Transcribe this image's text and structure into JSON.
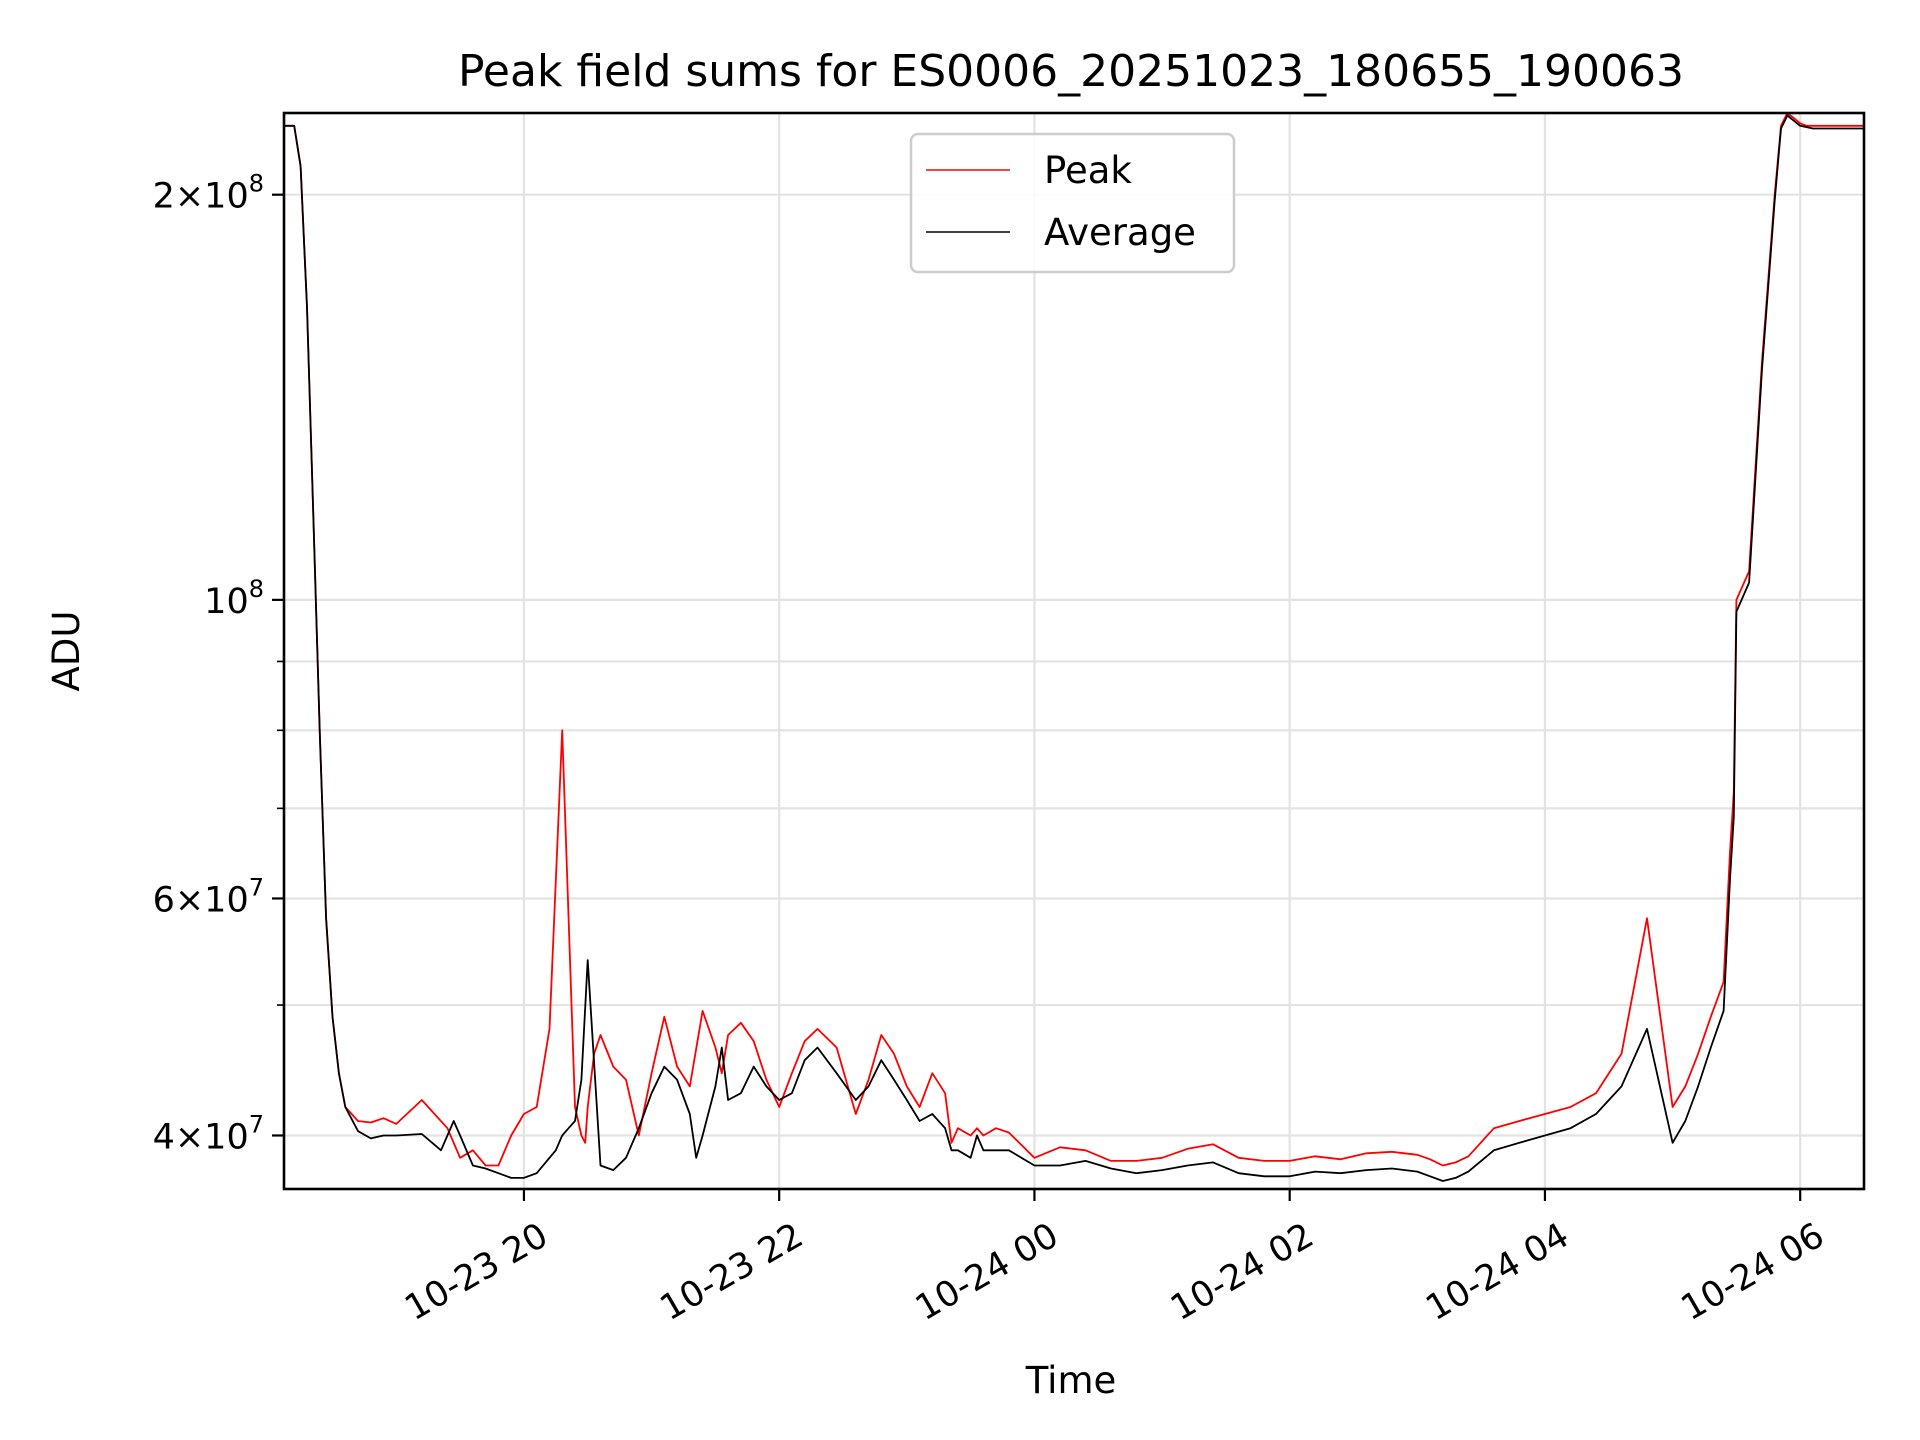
{
  "chart_data": {
    "type": "line",
    "title": "Peak field sums for ES0006_20251023_180655_190063",
    "xlabel": "Time",
    "ylabel": "ADU",
    "yscale": "log",
    "ylim": [
      36500000,
      230000000
    ],
    "xlim_hours_from_20251023_0000": [
      18.12,
      30.5
    ],
    "grid": true,
    "legend_position": "upper-center",
    "x_ticks": [
      {
        "hour": 20,
        "label": "10-23 20"
      },
      {
        "hour": 22,
        "label": "10-23 22"
      },
      {
        "hour": 24,
        "label": "10-24 00"
      },
      {
        "hour": 26,
        "label": "10-24 02"
      },
      {
        "hour": 28,
        "label": "10-24 04"
      },
      {
        "hour": 30,
        "label": "10-24 06"
      }
    ],
    "y_major_ticks": [
      {
        "value": 40000000,
        "mant": "4",
        "base": "10",
        "exp": "7"
      },
      {
        "value": 60000000,
        "mant": "6",
        "base": "10",
        "exp": "7"
      },
      {
        "value": 100000000,
        "mant": "",
        "base": "10",
        "exp": "8"
      },
      {
        "value": 200000000,
        "mant": "2",
        "base": "10",
        "exp": "8"
      }
    ],
    "y_minor_ticks": [
      50000000,
      70000000,
      80000000,
      90000000
    ],
    "series": [
      {
        "name": "Peak",
        "color": "#ff0000",
        "hours": [
          18.12,
          18.2,
          18.25,
          18.3,
          18.35,
          18.4,
          18.45,
          18.5,
          18.55,
          18.6,
          18.7,
          18.8,
          18.9,
          19.0,
          19.2,
          19.4,
          19.5,
          19.6,
          19.7,
          19.8,
          19.9,
          20.0,
          20.1,
          20.2,
          20.3,
          20.4,
          20.45,
          20.48,
          20.5,
          20.55,
          20.6,
          20.7,
          20.8,
          20.9,
          21.0,
          21.1,
          21.2,
          21.3,
          21.4,
          21.5,
          21.55,
          21.6,
          21.7,
          21.8,
          21.9,
          22.0,
          22.1,
          22.2,
          22.3,
          22.45,
          22.6,
          22.7,
          22.8,
          22.9,
          23.0,
          23.1,
          23.2,
          23.3,
          23.35,
          23.4,
          23.5,
          23.55,
          23.6,
          23.7,
          23.8,
          24.0,
          24.2,
          24.4,
          24.6,
          24.8,
          25.0,
          25.2,
          25.4,
          25.6,
          25.8,
          26.0,
          26.2,
          26.4,
          26.6,
          26.8,
          27.0,
          27.1,
          27.2,
          27.3,
          27.4,
          27.6,
          27.8,
          28.0,
          28.2,
          28.4,
          28.6,
          28.8,
          29.0,
          29.1,
          29.2,
          29.3,
          29.4,
          29.45,
          29.48,
          29.5,
          29.6,
          29.7,
          29.8,
          29.85,
          29.9,
          29.95,
          30.0,
          30.05,
          30.1,
          30.2,
          30.3,
          30.4,
          30.5
        ],
        "values": [
          225000000,
          225000000,
          210000000,
          165000000,
          115000000,
          80000000,
          58000000,
          49000000,
          44500000,
          42000000,
          41000000,
          40900000,
          41200000,
          40800000,
          42500000,
          40500000,
          38500000,
          39000000,
          38000000,
          38000000,
          40000000,
          41500000,
          42000000,
          48000000,
          80000000,
          42000000,
          40000000,
          39500000,
          42000000,
          46000000,
          47500000,
          45000000,
          44000000,
          40000000,
          44500000,
          49000000,
          45000000,
          43500000,
          49500000,
          46500000,
          44500000,
          47500000,
          48500000,
          47000000,
          44000000,
          42000000,
          44500000,
          47000000,
          48000000,
          46500000,
          41500000,
          44000000,
          47500000,
          46000000,
          43500000,
          42000000,
          44500000,
          43000000,
          39500000,
          40500000,
          40000000,
          40500000,
          40000000,
          40500000,
          40200000,
          38500000,
          39200000,
          39000000,
          38300000,
          38300000,
          38500000,
          39100000,
          39400000,
          38500000,
          38300000,
          38300000,
          38600000,
          38400000,
          38800000,
          38900000,
          38700000,
          38400000,
          38000000,
          38200000,
          38600000,
          40500000,
          41000000,
          41500000,
          42000000,
          43000000,
          46000000,
          58000000,
          42000000,
          43500000,
          46000000,
          49000000,
          52000000,
          65000000,
          72000000,
          100000000,
          105000000,
          150000000,
          200000000,
          225000000,
          230000000,
          228000000,
          226000000,
          225000000,
          225000000,
          225000000,
          225000000,
          225000000,
          225000000
        ]
      },
      {
        "name": "Average",
        "color": "#000000",
        "hours": [
          18.12,
          18.2,
          18.25,
          18.3,
          18.35,
          18.4,
          18.45,
          18.5,
          18.55,
          18.6,
          18.7,
          18.8,
          18.9,
          19.0,
          19.2,
          19.35,
          19.45,
          19.5,
          19.6,
          19.7,
          19.8,
          19.9,
          20.0,
          20.1,
          20.2,
          20.25,
          20.3,
          20.35,
          20.4,
          20.45,
          20.5,
          20.6,
          20.7,
          20.8,
          20.9,
          21.0,
          21.1,
          21.2,
          21.3,
          21.35,
          21.4,
          21.5,
          21.55,
          21.6,
          21.7,
          21.8,
          21.9,
          22.0,
          22.1,
          22.2,
          22.3,
          22.45,
          22.6,
          22.7,
          22.8,
          22.9,
          23.0,
          23.1,
          23.2,
          23.3,
          23.35,
          23.4,
          23.5,
          23.55,
          23.6,
          23.7,
          23.8,
          24.0,
          24.2,
          24.4,
          24.6,
          24.8,
          25.0,
          25.2,
          25.4,
          25.6,
          25.8,
          26.0,
          26.2,
          26.4,
          26.6,
          26.8,
          27.0,
          27.1,
          27.2,
          27.3,
          27.4,
          27.6,
          27.8,
          28.0,
          28.2,
          28.4,
          28.6,
          28.8,
          29.0,
          29.1,
          29.2,
          29.3,
          29.4,
          29.45,
          29.48,
          29.5,
          29.6,
          29.7,
          29.8,
          29.85,
          29.9,
          29.95,
          30.0,
          30.05,
          30.1,
          30.2,
          30.3,
          30.4,
          30.5
        ],
        "values": [
          225000000,
          225000000,
          210000000,
          165000000,
          115000000,
          80000000,
          58000000,
          49000000,
          44500000,
          42000000,
          40300000,
          39800000,
          40000000,
          40000000,
          40100000,
          39000000,
          41000000,
          40000000,
          38000000,
          37800000,
          37500000,
          37200000,
          37200000,
          37500000,
          38500000,
          39000000,
          40000000,
          40500000,
          41000000,
          44000000,
          54000000,
          38000000,
          37700000,
          38500000,
          40500000,
          43000000,
          45000000,
          44000000,
          41500000,
          38500000,
          40000000,
          43500000,
          46500000,
          42500000,
          43000000,
          45000000,
          43500000,
          42500000,
          43000000,
          45500000,
          46500000,
          44500000,
          42500000,
          43500000,
          45500000,
          44000000,
          42500000,
          41000000,
          41500000,
          40500000,
          39000000,
          39000000,
          38500000,
          40000000,
          39000000,
          39000000,
          39000000,
          38000000,
          38000000,
          38300000,
          37800000,
          37500000,
          37700000,
          38000000,
          38200000,
          37500000,
          37300000,
          37300000,
          37600000,
          37500000,
          37700000,
          37800000,
          37600000,
          37300000,
          37000000,
          37200000,
          37600000,
          39000000,
          39500000,
          40000000,
          40500000,
          41500000,
          43500000,
          48000000,
          39500000,
          41000000,
          43500000,
          46500000,
          49500000,
          62000000,
          69000000,
          98000000,
          103000000,
          148000000,
          198000000,
          224000000,
          229000000,
          227000000,
          225000000,
          224500000,
          224000000,
          224000000,
          224000000,
          224000000,
          224000000
        ]
      }
    ]
  },
  "legend": {
    "items": [
      {
        "label": "Peak",
        "color": "#ff0000"
      },
      {
        "label": "Average",
        "color": "#000000"
      }
    ]
  }
}
